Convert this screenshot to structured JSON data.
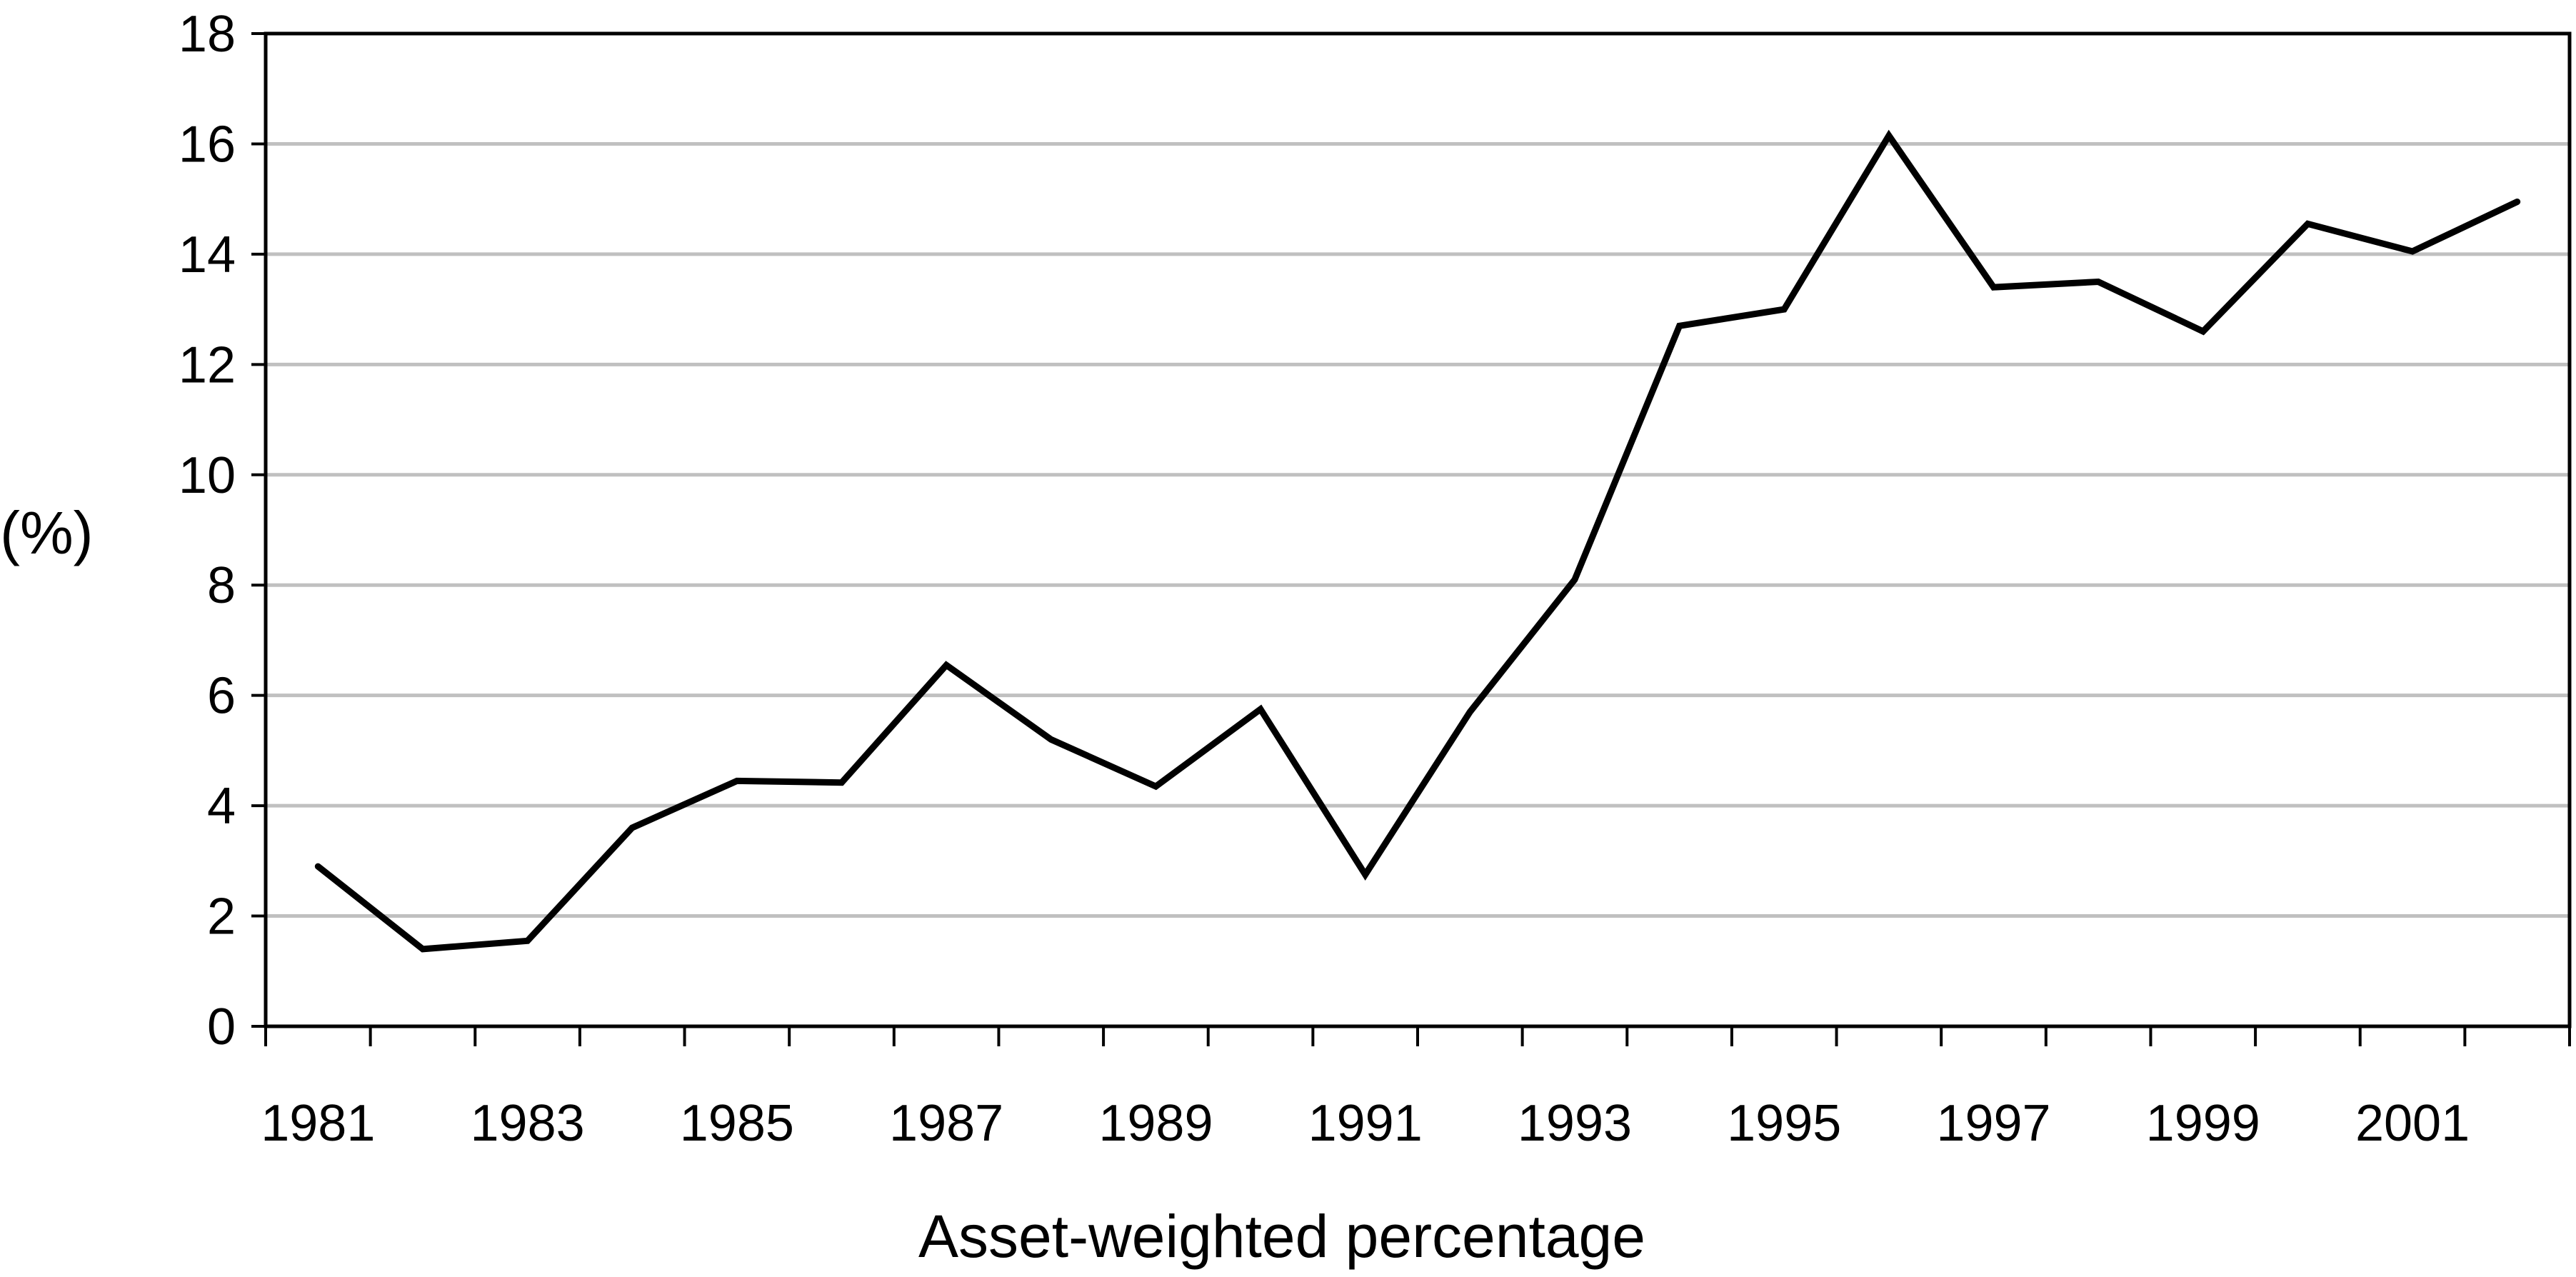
{
  "chart_data": {
    "type": "line",
    "title": "",
    "xlabel": "Asset-weighted percentage",
    "ylabel": "(%)",
    "x": [
      1981,
      1982,
      1983,
      1984,
      1985,
      1986,
      1987,
      1988,
      1989,
      1990,
      1991,
      1992,
      1993,
      1994,
      1995,
      1996,
      1997,
      1998,
      1999,
      2000,
      2001,
      2002
    ],
    "series": [
      {
        "values": [
          2.9,
          1.4,
          1.55,
          3.6,
          4.45,
          4.42,
          6.55,
          5.2,
          4.35,
          5.75,
          2.75,
          5.7,
          8.1,
          12.7,
          13.0,
          16.15,
          13.4,
          13.5,
          12.6,
          14.55,
          14.05,
          14.95
        ],
        "color": "#000000"
      }
    ],
    "xticks": [
      "1981",
      "1983",
      "1985",
      "1987",
      "1989",
      "1991",
      "1993",
      "1995",
      "1997",
      "1999",
      "2001"
    ],
    "yticks": [
      "0",
      "2",
      "4",
      "6",
      "8",
      "10",
      "12",
      "14",
      "16",
      "18"
    ],
    "ylim": [
      0,
      18
    ],
    "grid": true,
    "legend": "none",
    "colors": {
      "line": "#000000",
      "grid": "#c0c0c0",
      "frame": "#000000"
    }
  }
}
